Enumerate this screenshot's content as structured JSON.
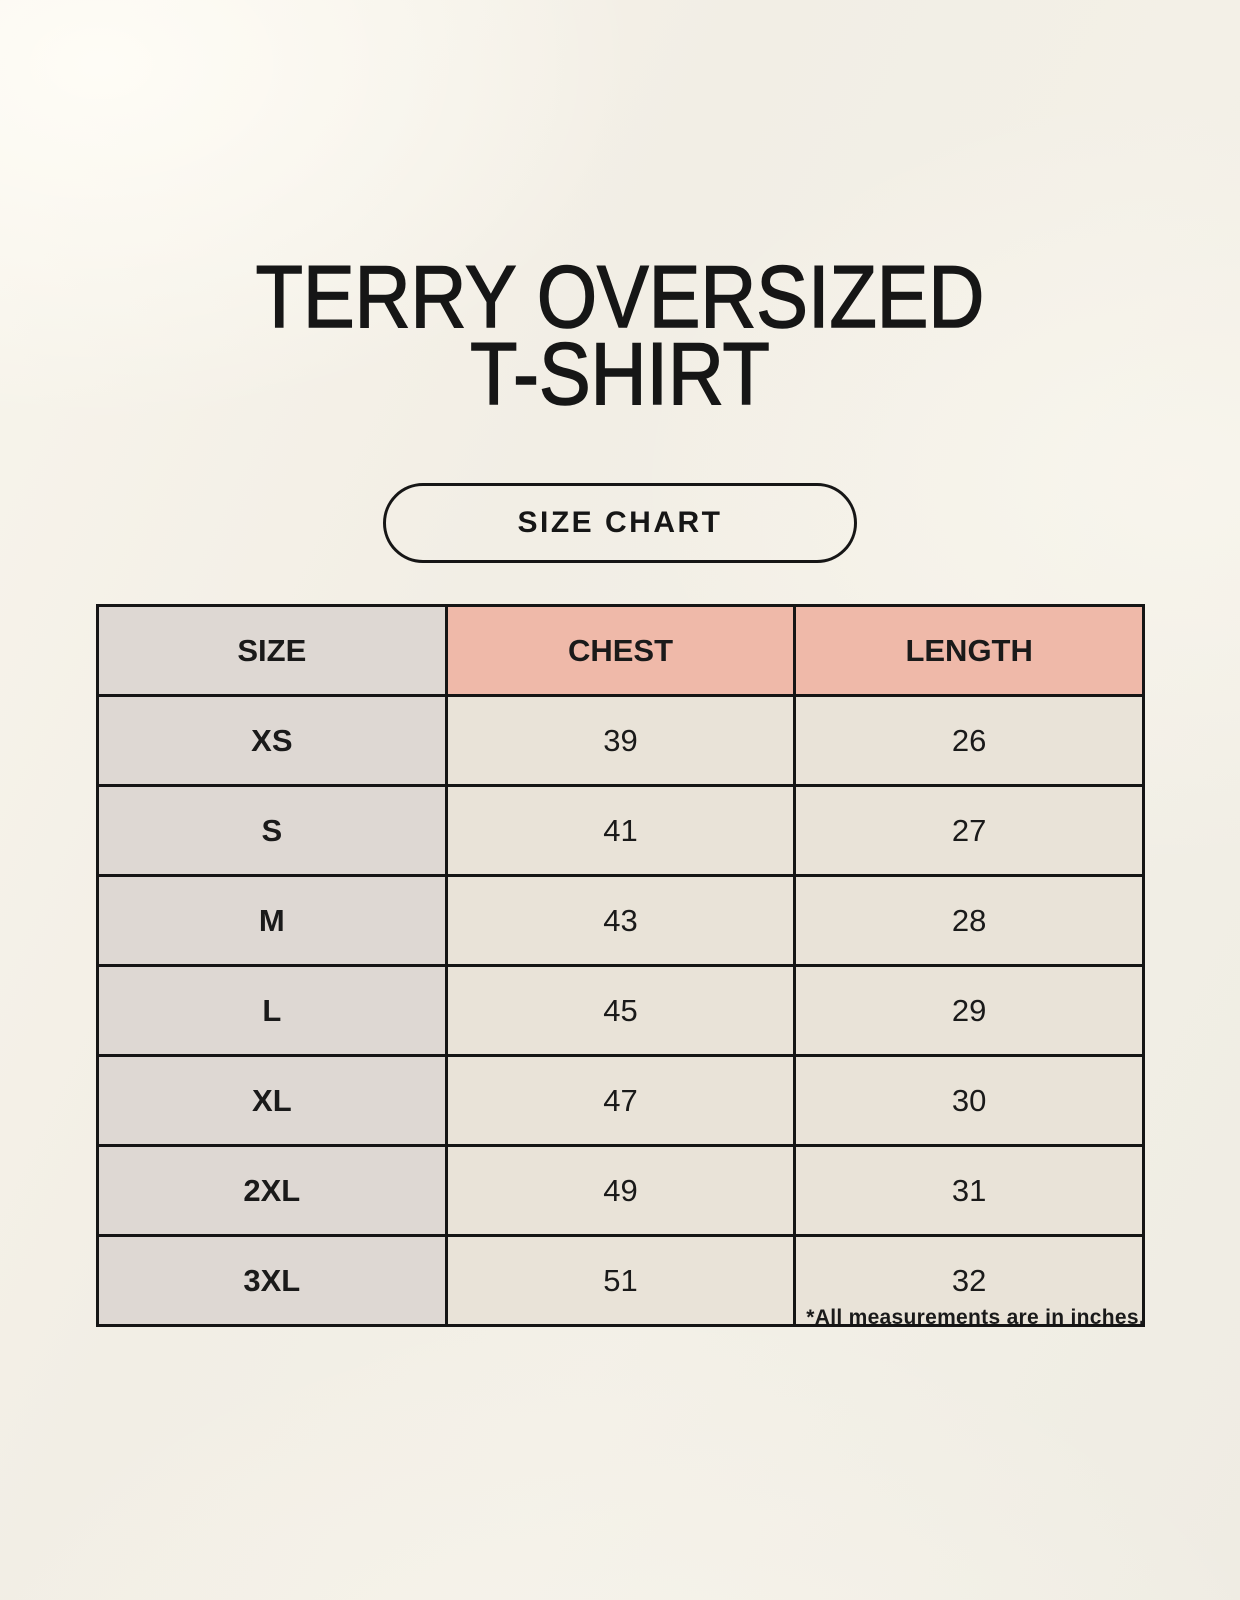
{
  "page": {
    "title_line1": "TERRY OVERSIZED",
    "title_line2": "T-SHIRT",
    "size_chart_label": "SIZE CHART",
    "footnote": "*All measurements are in inches."
  },
  "colors": {
    "background": "#F2EFE6",
    "size_column_bg": "#DED8D3",
    "header_accent_bg": "#EFB9A9",
    "value_cell_bg": "#E9E3D8",
    "border": "#151515",
    "text": "#1A1A1A"
  },
  "chart_data": {
    "type": "table",
    "title": "TERRY OVERSIZED T-SHIRT",
    "subtitle": "SIZE CHART",
    "units": "inches",
    "columns": [
      "SIZE",
      "CHEST",
      "LENGTH"
    ],
    "rows": [
      {
        "size": "XS",
        "chest": 39,
        "length": 26
      },
      {
        "size": "S",
        "chest": 41,
        "length": 27
      },
      {
        "size": "M",
        "chest": 43,
        "length": 28
      },
      {
        "size": "L",
        "chest": 45,
        "length": 29
      },
      {
        "size": "XL",
        "chest": 47,
        "length": 30
      },
      {
        "size": "2XL",
        "chest": 49,
        "length": 31
      },
      {
        "size": "3XL",
        "chest": 51,
        "length": 32
      }
    ],
    "note": "*All measurements are in inches."
  }
}
